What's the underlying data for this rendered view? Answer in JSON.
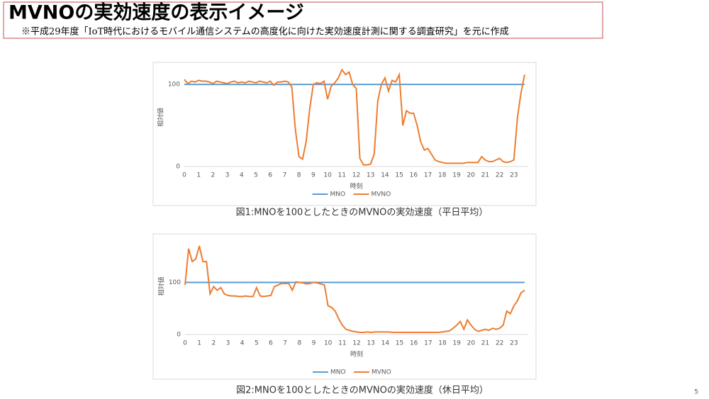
{
  "slide": {
    "title": "MVNOの実効速度の表示イメージ",
    "note": "※平成29年度「IoT時代におけるモバイル通信システムの高度化に向けた実効速度計測に関する調査研究」を元に作成",
    "page": "5"
  },
  "chart_data": [
    {
      "type": "line",
      "title": "図1:MNOを100としたときのMVNOの実効速度（平日平均）",
      "x_label": "時刻",
      "y_label": "相対値",
      "ylim": [
        0,
        120
      ],
      "yticks": [
        0,
        100
      ],
      "grid": false,
      "legend": "bottom",
      "categories": [
        "0",
        null,
        null,
        null,
        "1",
        null,
        null,
        null,
        "2",
        null,
        null,
        null,
        "3",
        null,
        null,
        null,
        "4",
        null,
        null,
        null,
        "5",
        null,
        null,
        null,
        "6",
        null,
        null,
        null,
        "7",
        null,
        null,
        null,
        "8",
        null,
        null,
        null,
        "9",
        null,
        null,
        null,
        "10",
        null,
        null,
        null,
        "11",
        null,
        null,
        null,
        "12",
        null,
        null,
        null,
        "13",
        null,
        null,
        null,
        "14",
        null,
        null,
        null,
        "15",
        null,
        null,
        null,
        "16",
        null,
        null,
        null,
        "17",
        null,
        null,
        null,
        "18",
        null,
        null,
        null,
        "19",
        null,
        null,
        null,
        "20",
        null,
        null,
        null,
        "21",
        null,
        null,
        null,
        "22",
        null,
        null,
        null,
        "23",
        null,
        null,
        null
      ],
      "series": [
        {
          "name": "MNO",
          "color": "#5b9bd5",
          "values": [
            100,
            100,
            100,
            100,
            100,
            100,
            100,
            100,
            100,
            100,
            100,
            100,
            100,
            100,
            100,
            100,
            100,
            100,
            100,
            100,
            100,
            100,
            100,
            100,
            100,
            100,
            100,
            100,
            100,
            100,
            100,
            100,
            100,
            100,
            100,
            100,
            100,
            100,
            100,
            100,
            100,
            100,
            100,
            100,
            100,
            100,
            100,
            100,
            100,
            100,
            100,
            100,
            100,
            100,
            100,
            100,
            100,
            100,
            100,
            100,
            100,
            100,
            100,
            100,
            100,
            100,
            100,
            100,
            100,
            100,
            100,
            100,
            100,
            100,
            100,
            100,
            100,
            100,
            100,
            100,
            100,
            100,
            100,
            100,
            100,
            100,
            100,
            100,
            100,
            100,
            100,
            100,
            100,
            100,
            100,
            100
          ]
        },
        {
          "name": "MVNO",
          "color": "#ed7d31",
          "values": [
            106,
            101,
            104,
            103,
            105,
            104,
            104,
            103,
            101,
            104,
            103,
            102,
            101,
            103,
            104,
            102,
            103,
            102,
            104,
            103,
            102,
            104,
            103,
            102,
            104,
            99,
            103,
            103,
            104,
            103,
            97,
            45,
            12,
            9,
            30,
            70,
            100,
            102,
            101,
            104,
            82,
            98,
            102,
            108,
            118,
            112,
            115,
            100,
            95,
            10,
            2,
            2,
            3,
            15,
            80,
            100,
            108,
            92,
            105,
            103,
            112,
            50,
            68,
            65,
            65,
            50,
            30,
            20,
            22,
            15,
            8,
            6,
            5,
            4,
            4,
            4,
            4,
            4,
            4,
            5,
            5,
            5,
            5,
            12,
            8,
            6,
            6,
            8,
            10,
            6,
            5,
            6,
            8,
            60,
            90,
            112
          ]
        }
      ]
    },
    {
      "type": "line",
      "title": "図2:MNOを100としたときのMVNOの実効速度（休日平均）",
      "x_label": "時刻",
      "y_label": "相対値",
      "ylim": [
        0,
        185
      ],
      "yticks": [
        0,
        100
      ],
      "grid": false,
      "legend": "bottom",
      "categories": [
        "0",
        null,
        null,
        null,
        "1",
        null,
        null,
        null,
        "2",
        null,
        null,
        null,
        "3",
        null,
        null,
        null,
        "4",
        null,
        null,
        null,
        "5",
        null,
        null,
        null,
        "6",
        null,
        null,
        null,
        "7",
        null,
        null,
        null,
        "8",
        null,
        null,
        null,
        "9",
        null,
        null,
        null,
        "10",
        null,
        null,
        null,
        "11",
        null,
        null,
        null,
        "12",
        null,
        null,
        null,
        "13",
        null,
        null,
        null,
        "14",
        null,
        null,
        null,
        "15",
        null,
        null,
        null,
        "16",
        null,
        null,
        null,
        "17",
        null,
        null,
        null,
        "18",
        null,
        null,
        null,
        "19",
        null,
        null,
        null,
        "20",
        null,
        null,
        null,
        "21",
        null,
        null,
        null,
        "22",
        null,
        null,
        null,
        "23",
        null,
        null,
        null
      ],
      "series": [
        {
          "name": "MNO",
          "color": "#5b9bd5",
          "values": [
            100,
            100,
            100,
            100,
            100,
            100,
            100,
            100,
            100,
            100,
            100,
            100,
            100,
            100,
            100,
            100,
            100,
            100,
            100,
            100,
            100,
            100,
            100,
            100,
            100,
            100,
            100,
            100,
            100,
            100,
            100,
            100,
            100,
            100,
            100,
            100,
            100,
            100,
            100,
            100,
            100,
            100,
            100,
            100,
            100,
            100,
            100,
            100,
            100,
            100,
            100,
            100,
            100,
            100,
            100,
            100,
            100,
            100,
            100,
            100,
            100,
            100,
            100,
            100,
            100,
            100,
            100,
            100,
            100,
            100,
            100,
            100,
            100,
            100,
            100,
            100,
            100,
            100,
            100,
            100,
            100,
            100,
            100,
            100,
            100,
            100,
            100,
            100,
            100,
            100,
            100,
            100,
            100,
            100,
            100,
            100
          ]
        },
        {
          "name": "MVNO",
          "color": "#ed7d31",
          "values": [
            95,
            165,
            140,
            145,
            170,
            140,
            140,
            78,
            92,
            85,
            90,
            78,
            75,
            74,
            74,
            73,
            73,
            74,
            73,
            73,
            90,
            74,
            73,
            74,
            75,
            92,
            95,
            98,
            98,
            98,
            85,
            101,
            100,
            99,
            97,
            98,
            100,
            99,
            97,
            95,
            55,
            52,
            45,
            30,
            18,
            10,
            8,
            6,
            5,
            4,
            4,
            5,
            4,
            5,
            5,
            5,
            5,
            5,
            4,
            4,
            4,
            4,
            4,
            4,
            4,
            4,
            4,
            4,
            4,
            4,
            4,
            4,
            5,
            6,
            7,
            12,
            18,
            25,
            10,
            28,
            18,
            10,
            6,
            8,
            10,
            8,
            12,
            10,
            12,
            18,
            45,
            40,
            55,
            65,
            80,
            85
          ]
        }
      ]
    }
  ]
}
